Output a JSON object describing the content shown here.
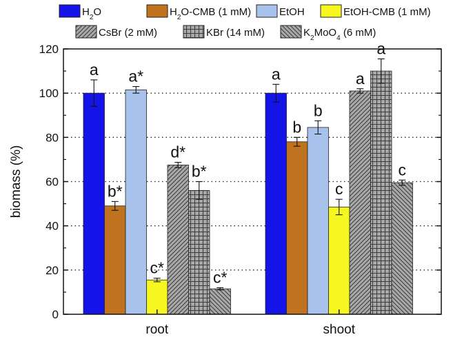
{
  "chart_data": {
    "type": "bar",
    "categories": [
      "root",
      "shoot"
    ],
    "ylabel": "biomass (%)",
    "xlabel": "",
    "ylim": [
      0,
      120
    ],
    "yticks": [
      0,
      20,
      40,
      60,
      80,
      100,
      120
    ],
    "grid": "horizontal dotted at 20, 40, 60, 80, 100",
    "legend_position": "top",
    "series": [
      {
        "name": "H2O",
        "legend_main": "H",
        "legend_sub": "2",
        "legend_rest": "O",
        "color": "#1414e8",
        "pattern": "solid",
        "values": [
          100,
          100
        ],
        "errors": [
          6,
          4
        ],
        "labels": [
          "a",
          "a"
        ]
      },
      {
        "name": "H2O-CMB (1 mM)",
        "legend_main": "H",
        "legend_sub": "2",
        "legend_rest": "O-CMB (1 mM)",
        "color": "#c0731f",
        "pattern": "solid",
        "values": [
          49,
          78
        ],
        "errors": [
          2,
          2
        ],
        "labels": [
          "b*",
          "b"
        ]
      },
      {
        "name": "EtOH",
        "legend_main": "EtOH",
        "legend_sub": "",
        "legend_rest": "",
        "color": "#a9c2ec",
        "pattern": "solid",
        "values": [
          101.5,
          84.5
        ],
        "errors": [
          1.5,
          3
        ],
        "labels": [
          "a*",
          "b"
        ]
      },
      {
        "name": "EtOH-CMB (1 mM)",
        "legend_main": "EtOH-CMB (1 mM)",
        "legend_sub": "",
        "legend_rest": "",
        "color": "#f6f620",
        "pattern": "solid",
        "values": [
          15.5,
          48.5
        ],
        "errors": [
          0.8,
          3.5
        ],
        "labels": [
          "c*",
          "c"
        ]
      },
      {
        "name": "CsBr (2 mM)",
        "legend_main": "CsBr (2 mM)",
        "legend_sub": "",
        "legend_rest": "",
        "color": "#a8a8a8",
        "pattern": "diag",
        "values": [
          67.5,
          101
        ],
        "errors": [
          1.2,
          1
        ],
        "labels": [
          "d*",
          "a"
        ]
      },
      {
        "name": "KBr (14 mM)",
        "legend_main": "KBr (14 mM)",
        "legend_sub": "",
        "legend_rest": "",
        "color": "#a8a8a8",
        "pattern": "grid",
        "values": [
          56,
          110
        ],
        "errors": [
          4,
          5.5
        ],
        "labels": [
          "b*",
          "a"
        ]
      },
      {
        "name": "K2MoO4 (6 mM)",
        "legend_main": "K",
        "legend_sub": "2",
        "legend_rest": "MoO",
        "legend_sub2": "4",
        "legend_tail": " (6 mM)",
        "color": "#a8a8a8",
        "pattern": "backdiag",
        "values": [
          11.5,
          59.5
        ],
        "errors": [
          0.5,
          1.2
        ],
        "labels": [
          "c*",
          "c"
        ]
      }
    ]
  }
}
